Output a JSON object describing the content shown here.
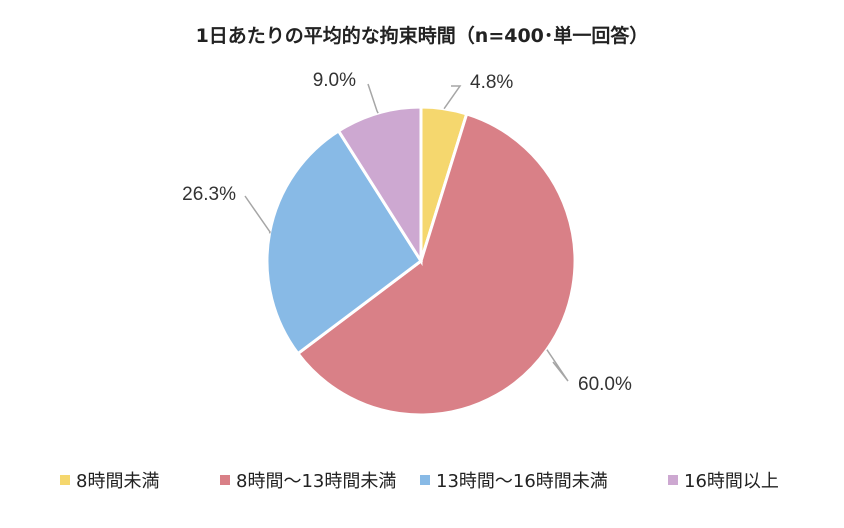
{
  "chart_data": {
    "type": "pie",
    "title": "1日あたりの平均的な拘束時間（n=400･単一回答）",
    "categories": [
      "8時間未満",
      "8時間～13時間未満",
      "13時間～16時間未満",
      "16時間以上"
    ],
    "values": [
      4.8,
      60.0,
      26.3,
      9.0
    ],
    "labels": [
      "4.8%",
      "60.0%",
      "26.3%",
      "9.0%"
    ],
    "colors": [
      "#F5D76E",
      "#D98087",
      "#88BAE6",
      "#CDA8D1"
    ],
    "legend_position": "bottom",
    "start_angle": "12 o'clock",
    "direction": "clockwise"
  }
}
